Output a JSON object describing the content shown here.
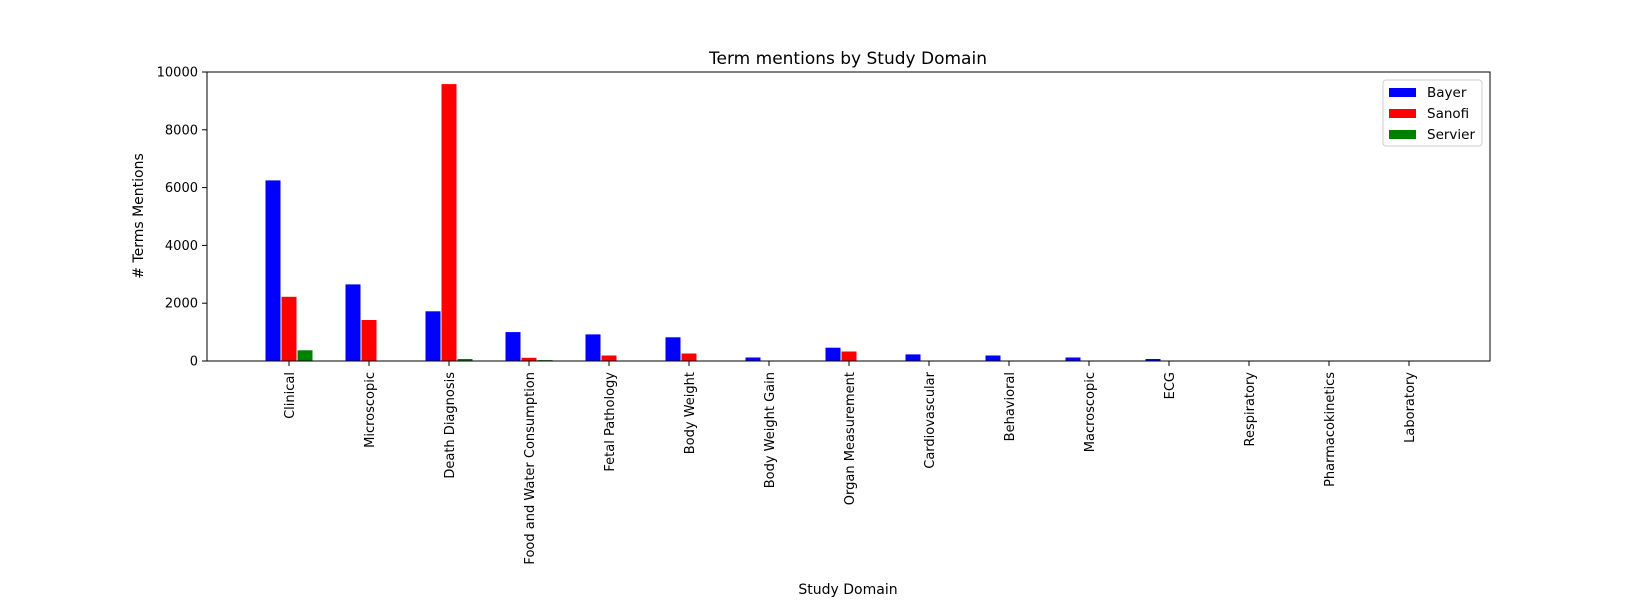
{
  "chart_data": {
    "type": "bar",
    "title": "Term mentions by Study Domain",
    "xlabel": "Study Domain",
    "ylabel": "# Terms Mentions",
    "ylim": [
      0,
      10000
    ],
    "yticks": [
      0,
      2000,
      4000,
      6000,
      8000,
      10000
    ],
    "grid": false,
    "legend_position": "top-right",
    "categories": [
      "Clinical",
      "Microscopic",
      "Death Diagnosis",
      "Food and Water Consumption",
      "Fetal Pathology",
      "Body Weight",
      "Body Weight Gain",
      "Organ Measurement",
      "Cardiovascular",
      "Behavioral",
      "Macroscopic",
      "ECG",
      "Respiratory",
      "Pharmacokinetics",
      "Laboratory"
    ],
    "series": [
      {
        "name": "Bayer",
        "color": "#0000ff",
        "values": [
          6250,
          2650,
          1720,
          1000,
          920,
          820,
          120,
          460,
          230,
          190,
          120,
          70,
          0,
          0,
          0
        ]
      },
      {
        "name": "Sanofi",
        "color": "#ff0000",
        "values": [
          2220,
          1420,
          9580,
          110,
          190,
          260,
          0,
          330,
          0,
          0,
          0,
          0,
          0,
          0,
          0
        ]
      },
      {
        "name": "Servier",
        "color": "#008000",
        "values": [
          370,
          0,
          70,
          30,
          0,
          0,
          0,
          0,
          0,
          0,
          0,
          0,
          0,
          0,
          0
        ]
      }
    ]
  }
}
